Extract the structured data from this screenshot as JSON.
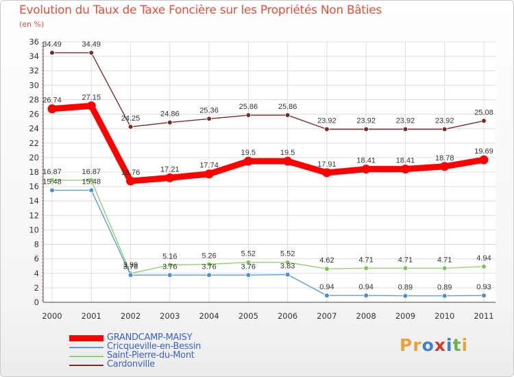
{
  "header": {
    "title": "Evolution du Taux de Taxe Foncière sur les Propriétés Non Bâties",
    "unit": "(en %)"
  },
  "logo": {
    "text": "Proxiti",
    "letters": [
      {
        "ch": "P",
        "color": "#e8a33a"
      },
      {
        "ch": "r",
        "color": "#e8a33a"
      },
      {
        "ch": "o",
        "color": "#3b7fd0"
      },
      {
        "ch": "x",
        "color": "#d63a2a"
      },
      {
        "ch": "i",
        "color": "#3b7fd0"
      },
      {
        "ch": "t",
        "color": "#6ab34a"
      },
      {
        "ch": "i",
        "color": "#e8a33a"
      }
    ]
  },
  "chart_data": {
    "type": "line",
    "title": "Evolution du Taux de Taxe Foncière sur les Propriétés Non Bâties",
    "ylabel": "(en %)",
    "xlabel": "",
    "ylim": [
      0,
      36
    ],
    "yticks": [
      0,
      2,
      4,
      6,
      8,
      10,
      12,
      14,
      16,
      18,
      20,
      22,
      24,
      26,
      28,
      30,
      32,
      34,
      36
    ],
    "grid": true,
    "legend_position": "bottom-left",
    "categories": [
      "2000",
      "2001",
      "2002",
      "2003",
      "2004",
      "2005",
      "2006",
      "2007",
      "2008",
      "2009",
      "2010",
      "2011"
    ],
    "series": [
      {
        "name": "Cardonville",
        "color": "#7a2a2a",
        "marker": "#7a2a2a",
        "values": [
          34.49,
          34.49,
          24.25,
          24.86,
          25.36,
          25.86,
          25.86,
          23.92,
          23.92,
          23.92,
          23.92,
          25.08
        ],
        "labels": [
          "34.49",
          "34.49",
          "24.25",
          "24.86",
          "25.36",
          "25.86",
          "25.86",
          "23.92",
          "23.92",
          "23.92",
          "23.92",
          "25.08"
        ]
      },
      {
        "name": "Saint-Pierre-du-Mont",
        "color": "#8ed46e",
        "marker": "#7ac74f",
        "values": [
          16.87,
          16.87,
          3.99,
          5.16,
          5.26,
          5.52,
          5.52,
          4.62,
          4.71,
          4.71,
          4.71,
          4.94
        ],
        "labels": [
          "16.87",
          "16.87",
          "3.99",
          "5.16",
          "5.26",
          "5.52",
          "5.52",
          "4.62",
          "4.71",
          "4.71",
          "4.71",
          "4.94"
        ]
      },
      {
        "name": "Cricqueville-en-Bessin",
        "color": "#5b9bd5",
        "marker": "#4a8fd0",
        "values": [
          15.48,
          15.48,
          3.76,
          3.76,
          3.76,
          3.76,
          3.83,
          0.94,
          0.94,
          0.89,
          0.89,
          0.93
        ],
        "labels": [
          "15.48",
          "15.48",
          "3.76",
          "3.76",
          "3.76",
          "3.76",
          "3.83",
          "0.94",
          "0.94",
          "0.89",
          "0.89",
          "0.93"
        ]
      },
      {
        "name": "GRANDCAMP-MAISY",
        "color": "#ff0000",
        "marker": "#ff0000",
        "values": [
          26.74,
          27.15,
          16.76,
          17.21,
          17.74,
          19.5,
          19.5,
          17.91,
          18.41,
          18.41,
          18.78,
          19.69
        ],
        "labels": [
          "26.74",
          "27.15",
          "16.76",
          "17.21",
          "17.74",
          "19.5",
          "19.5",
          "17.91",
          "18.41",
          "18.41",
          "18.78",
          "19.69"
        ]
      }
    ],
    "legend_order": [
      "GRANDCAMP-MAISY",
      "Cricqueville-en-Bessin",
      "Saint-Pierre-du-Mont",
      "Cardonville"
    ]
  }
}
